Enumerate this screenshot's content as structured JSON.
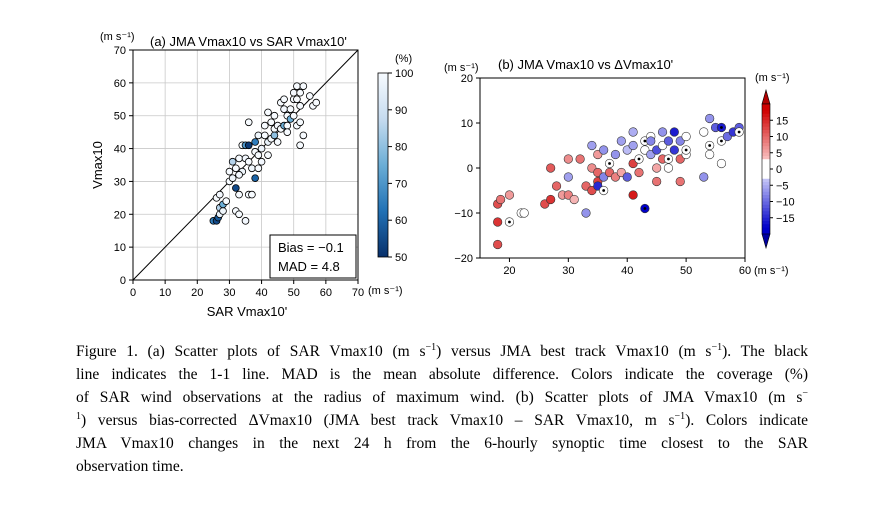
{
  "chart_data": [
    {
      "type": "scatter",
      "panel": "a",
      "title": "(a) JMA Vmax10 vs SAR Vmax10'",
      "xlabel": "SAR Vmax10'",
      "ylabel": "Vmax10",
      "unit": "(m s⁻¹)",
      "xlim": [
        0,
        70
      ],
      "ylim": [
        0,
        70
      ],
      "xticks": [
        0,
        10,
        20,
        30,
        40,
        50,
        60,
        70
      ],
      "yticks": [
        0,
        10,
        20,
        30,
        40,
        50,
        60,
        70
      ],
      "grid": true,
      "reference_line": "1-1 line",
      "colorbar": {
        "label": "(%)",
        "min": 50,
        "max": 100,
        "ticks": [
          50,
          60,
          70,
          80,
          90,
          100
        ]
      },
      "stats": {
        "bias_label": "Bias = ",
        "bias": "−0.1",
        "mad_label": "MAD = ",
        "mad": "4.8"
      },
      "points": [
        {
          "x": 25,
          "y": 18,
          "c": 65
        },
        {
          "x": 26,
          "y": 18,
          "c": 55
        },
        {
          "x": 26.5,
          "y": 19,
          "c": 58
        },
        {
          "x": 27,
          "y": 20,
          "c": 96
        },
        {
          "x": 27,
          "y": 22,
          "c": 85
        },
        {
          "x": 28,
          "y": 21,
          "c": 98
        },
        {
          "x": 26,
          "y": 25,
          "c": 100
        },
        {
          "x": 27,
          "y": 26,
          "c": 99
        },
        {
          "x": 28,
          "y": 23,
          "c": 75
        },
        {
          "x": 29,
          "y": 24,
          "c": 100
        },
        {
          "x": 30,
          "y": 30,
          "c": 100
        },
        {
          "x": 31,
          "y": 31,
          "c": 98
        },
        {
          "x": 32,
          "y": 28,
          "c": 55
        },
        {
          "x": 32,
          "y": 21,
          "c": 100
        },
        {
          "x": 33,
          "y": 20,
          "c": 100
        },
        {
          "x": 35,
          "y": 18,
          "c": 99
        },
        {
          "x": 33,
          "y": 26,
          "c": 100
        },
        {
          "x": 34,
          "y": 33,
          "c": 98
        },
        {
          "x": 31,
          "y": 36,
          "c": 85
        },
        {
          "x": 32,
          "y": 34,
          "c": 100
        },
        {
          "x": 33,
          "y": 37,
          "c": 100
        },
        {
          "x": 34,
          "y": 41,
          "c": 100
        },
        {
          "x": 35,
          "y": 41,
          "c": 70
        },
        {
          "x": 36,
          "y": 41,
          "c": 52
        },
        {
          "x": 35,
          "y": 37,
          "c": 99
        },
        {
          "x": 36,
          "y": 36,
          "c": 100
        },
        {
          "x": 37,
          "y": 34,
          "c": 98
        },
        {
          "x": 36,
          "y": 26,
          "c": 100
        },
        {
          "x": 37,
          "y": 26,
          "c": 100
        },
        {
          "x": 38,
          "y": 31,
          "c": 60
        },
        {
          "x": 38,
          "y": 39,
          "c": 100
        },
        {
          "x": 38,
          "y": 42,
          "c": 65
        },
        {
          "x": 39,
          "y": 44,
          "c": 98
        },
        {
          "x": 39,
          "y": 38,
          "c": 100
        },
        {
          "x": 40,
          "y": 40,
          "c": 97
        },
        {
          "x": 40,
          "y": 36,
          "c": 99
        },
        {
          "x": 41,
          "y": 44,
          "c": 100
        },
        {
          "x": 41,
          "y": 47,
          "c": 100
        },
        {
          "x": 42,
          "y": 38,
          "c": 100
        },
        {
          "x": 42,
          "y": 42,
          "c": 96
        },
        {
          "x": 43,
          "y": 43,
          "c": 100
        },
        {
          "x": 43,
          "y": 48,
          "c": 100
        },
        {
          "x": 44,
          "y": 46,
          "c": 100
        },
        {
          "x": 44,
          "y": 44,
          "c": 80
        },
        {
          "x": 44,
          "y": 50,
          "c": 100
        },
        {
          "x": 45,
          "y": 47,
          "c": 99
        },
        {
          "x": 45,
          "y": 42,
          "c": 100
        },
        {
          "x": 46,
          "y": 46,
          "c": 100
        },
        {
          "x": 46,
          "y": 54,
          "c": 100
        },
        {
          "x": 47,
          "y": 47,
          "c": 75
        },
        {
          "x": 47,
          "y": 52,
          "c": 99
        },
        {
          "x": 47,
          "y": 55,
          "c": 100
        },
        {
          "x": 48,
          "y": 47,
          "c": 100
        },
        {
          "x": 48,
          "y": 50,
          "c": 100
        },
        {
          "x": 48,
          "y": 45,
          "c": 100
        },
        {
          "x": 49,
          "y": 49,
          "c": 75
        },
        {
          "x": 49,
          "y": 52,
          "c": 100
        },
        {
          "x": 50,
          "y": 50,
          "c": 100
        },
        {
          "x": 50,
          "y": 55,
          "c": 100
        },
        {
          "x": 50,
          "y": 57,
          "c": 99
        },
        {
          "x": 51,
          "y": 55,
          "c": 100
        },
        {
          "x": 51,
          "y": 59,
          "c": 100
        },
        {
          "x": 52,
          "y": 57,
          "c": 100
        },
        {
          "x": 52,
          "y": 53,
          "c": 100
        },
        {
          "x": 53,
          "y": 59,
          "c": 100
        },
        {
          "x": 51,
          "y": 47,
          "c": 100
        },
        {
          "x": 52,
          "y": 48,
          "c": 100
        },
        {
          "x": 53,
          "y": 44,
          "c": 100
        },
        {
          "x": 52,
          "y": 41,
          "c": 100
        },
        {
          "x": 55,
          "y": 56,
          "c": 100
        },
        {
          "x": 56,
          "y": 53,
          "c": 100
        },
        {
          "x": 57,
          "y": 54,
          "c": 100
        },
        {
          "x": 36,
          "y": 48,
          "c": 100
        },
        {
          "x": 42,
          "y": 51,
          "c": 100
        },
        {
          "x": 39,
          "y": 34,
          "c": 100
        },
        {
          "x": 33,
          "y": 32,
          "c": 99
        },
        {
          "x": 30,
          "y": 33,
          "c": 100
        }
      ]
    },
    {
      "type": "scatter",
      "panel": "b",
      "title": "(b) JMA Vmax10 vs ΔVmax10'",
      "xunit": "(m s⁻¹)",
      "yunit": "(m s⁻¹)",
      "xlim": [
        15,
        60
      ],
      "ylim": [
        -20,
        20
      ],
      "xticks": [
        20,
        30,
        40,
        50,
        60
      ],
      "yticks": [
        -20,
        -10,
        0,
        10,
        20
      ],
      "grid": false,
      "colorbar": {
        "label": "(m s⁻¹)",
        "min": -20,
        "max": 20,
        "ticks": [
          15,
          10,
          5,
          0,
          -5,
          -10,
          -15
        ]
      },
      "points": [
        {
          "x": 18,
          "y": -8,
          "c": 12
        },
        {
          "x": 18,
          "y": -12,
          "c": 14
        },
        {
          "x": 18,
          "y": -17,
          "c": 12
        },
        {
          "x": 18.5,
          "y": -7,
          "c": 9
        },
        {
          "x": 20,
          "y": -6,
          "c": 6
        },
        {
          "x": 20,
          "y": -12,
          "c": -1,
          "m": true
        },
        {
          "x": 22,
          "y": -10,
          "c": 0,
          "m": true
        },
        {
          "x": 22.5,
          "y": -10,
          "c": -3
        },
        {
          "x": 26,
          "y": -8,
          "c": 12
        },
        {
          "x": 27,
          "y": -7,
          "c": 14
        },
        {
          "x": 27,
          "y": 0,
          "c": 11
        },
        {
          "x": 28,
          "y": -4,
          "c": 10
        },
        {
          "x": 29,
          "y": -6,
          "c": 6
        },
        {
          "x": 30,
          "y": -6,
          "c": 8
        },
        {
          "x": 30,
          "y": 2,
          "c": 7
        },
        {
          "x": 30,
          "y": -2,
          "c": -6
        },
        {
          "x": 31,
          "y": -7,
          "c": 4
        },
        {
          "x": 32,
          "y": 2,
          "c": 9
        },
        {
          "x": 33,
          "y": -4,
          "c": 10
        },
        {
          "x": 33,
          "y": -10,
          "c": -7
        },
        {
          "x": 34,
          "y": -5,
          "c": 12
        },
        {
          "x": 34,
          "y": 0,
          "c": 7
        },
        {
          "x": 34,
          "y": 5,
          "c": -6
        },
        {
          "x": 35,
          "y": -3,
          "c": 13
        },
        {
          "x": 35,
          "y": -1,
          "c": 10
        },
        {
          "x": 35,
          "y": 3,
          "c": 6
        },
        {
          "x": 35,
          "y": -4,
          "c": -15
        },
        {
          "x": 36,
          "y": -5,
          "c": -2,
          "m": true
        },
        {
          "x": 36,
          "y": -2,
          "c": -8
        },
        {
          "x": 36,
          "y": 4,
          "c": -7
        },
        {
          "x": 37,
          "y": -1,
          "c": 10
        },
        {
          "x": 37,
          "y": 1,
          "c": -1,
          "m": true
        },
        {
          "x": 38,
          "y": -2,
          "c": 8
        },
        {
          "x": 38,
          "y": 3,
          "c": -7
        },
        {
          "x": 39,
          "y": 6,
          "c": -6
        },
        {
          "x": 39,
          "y": -1,
          "c": 5
        },
        {
          "x": 40,
          "y": -2,
          "c": -11
        },
        {
          "x": 40,
          "y": 4,
          "c": -4
        },
        {
          "x": 41,
          "y": -6,
          "c": 16
        },
        {
          "x": 41,
          "y": 1,
          "c": 13
        },
        {
          "x": 41,
          "y": 5,
          "c": -6
        },
        {
          "x": 41,
          "y": 8,
          "c": -5
        },
        {
          "x": 42,
          "y": -1,
          "c": 9
        },
        {
          "x": 42,
          "y": 2,
          "c": -1,
          "m": true
        },
        {
          "x": 43,
          "y": -9,
          "c": -18,
          "m": true
        },
        {
          "x": 43,
          "y": 6,
          "c": -1,
          "m": true
        },
        {
          "x": 43,
          "y": 4,
          "c": -3
        },
        {
          "x": 44,
          "y": 7,
          "c": 0
        },
        {
          "x": 44,
          "y": 3,
          "c": -6
        },
        {
          "x": 44,
          "y": 6,
          "c": -8
        },
        {
          "x": 45,
          "y": -3,
          "c": 9
        },
        {
          "x": 45,
          "y": 0,
          "c": 5
        },
        {
          "x": 45,
          "y": 4,
          "c": -12
        },
        {
          "x": 46,
          "y": 2,
          "c": 10
        },
        {
          "x": 46,
          "y": 5,
          "c": 3
        },
        {
          "x": 46,
          "y": 8,
          "c": -7
        },
        {
          "x": 47,
          "y": 2,
          "c": -1,
          "m": true
        },
        {
          "x": 47,
          "y": 6,
          "c": -11
        },
        {
          "x": 47,
          "y": 0,
          "c": 2
        },
        {
          "x": 48,
          "y": 4,
          "c": -14
        },
        {
          "x": 48,
          "y": 8,
          "c": -16
        },
        {
          "x": 49,
          "y": 2,
          "c": 10
        },
        {
          "x": 49,
          "y": -3,
          "c": 9
        },
        {
          "x": 49,
          "y": 6,
          "c": -8
        },
        {
          "x": 50,
          "y": 3,
          "c": 0
        },
        {
          "x": 50,
          "y": 4,
          "c": -1,
          "m": true
        },
        {
          "x": 50,
          "y": 7,
          "c": -3
        },
        {
          "x": 53,
          "y": -2,
          "c": -7
        },
        {
          "x": 53,
          "y": 8,
          "c": 3
        },
        {
          "x": 54,
          "y": 11,
          "c": -7
        },
        {
          "x": 54,
          "y": 5,
          "c": -1,
          "m": true
        },
        {
          "x": 54,
          "y": 3,
          "c": 2
        },
        {
          "x": 55,
          "y": 9,
          "c": -11
        },
        {
          "x": 56,
          "y": 9,
          "c": -16,
          "m": true
        },
        {
          "x": 56,
          "y": 1,
          "c": -1
        },
        {
          "x": 56,
          "y": 6,
          "c": -1,
          "m": true
        },
        {
          "x": 57,
          "y": 7,
          "c": -10
        },
        {
          "x": 58,
          "y": 8,
          "c": -14
        },
        {
          "x": 59,
          "y": 9,
          "c": -11
        },
        {
          "x": 59,
          "y": 8,
          "c": -1,
          "m": true
        }
      ]
    }
  ],
  "caption": {
    "lines": [
      {
        "parts": [
          "Figure 1. (a) Scatter plots of SAR Vmax10 (m s",
          "−1",
          ") versus JMA best track Vmax10 (m s",
          "−1",
          "). The black"
        ]
      },
      {
        "parts": [
          "line indicates the 1-1 line. MAD is the mean absolute difference. Colors indicate the coverage (%)"
        ]
      },
      {
        "parts": [
          "of SAR wind observations at the radius of maximum wind. (b) Scatter plots of JMA Vmax10 (m s",
          "−",
          ""
        ]
      },
      {
        "parts": [
          "",
          "1",
          ") versus bias-corrected ΔVmax10 (JMA best track Vmax10 – SAR Vmax10, m s",
          "−1",
          "). Colors indicate"
        ]
      },
      {
        "parts": [
          "JMA Vmax10 changes in the next 24 h from the 6-hourly synoptic time closest to the SAR"
        ]
      },
      {
        "parts": [
          "observation time."
        ]
      }
    ]
  }
}
